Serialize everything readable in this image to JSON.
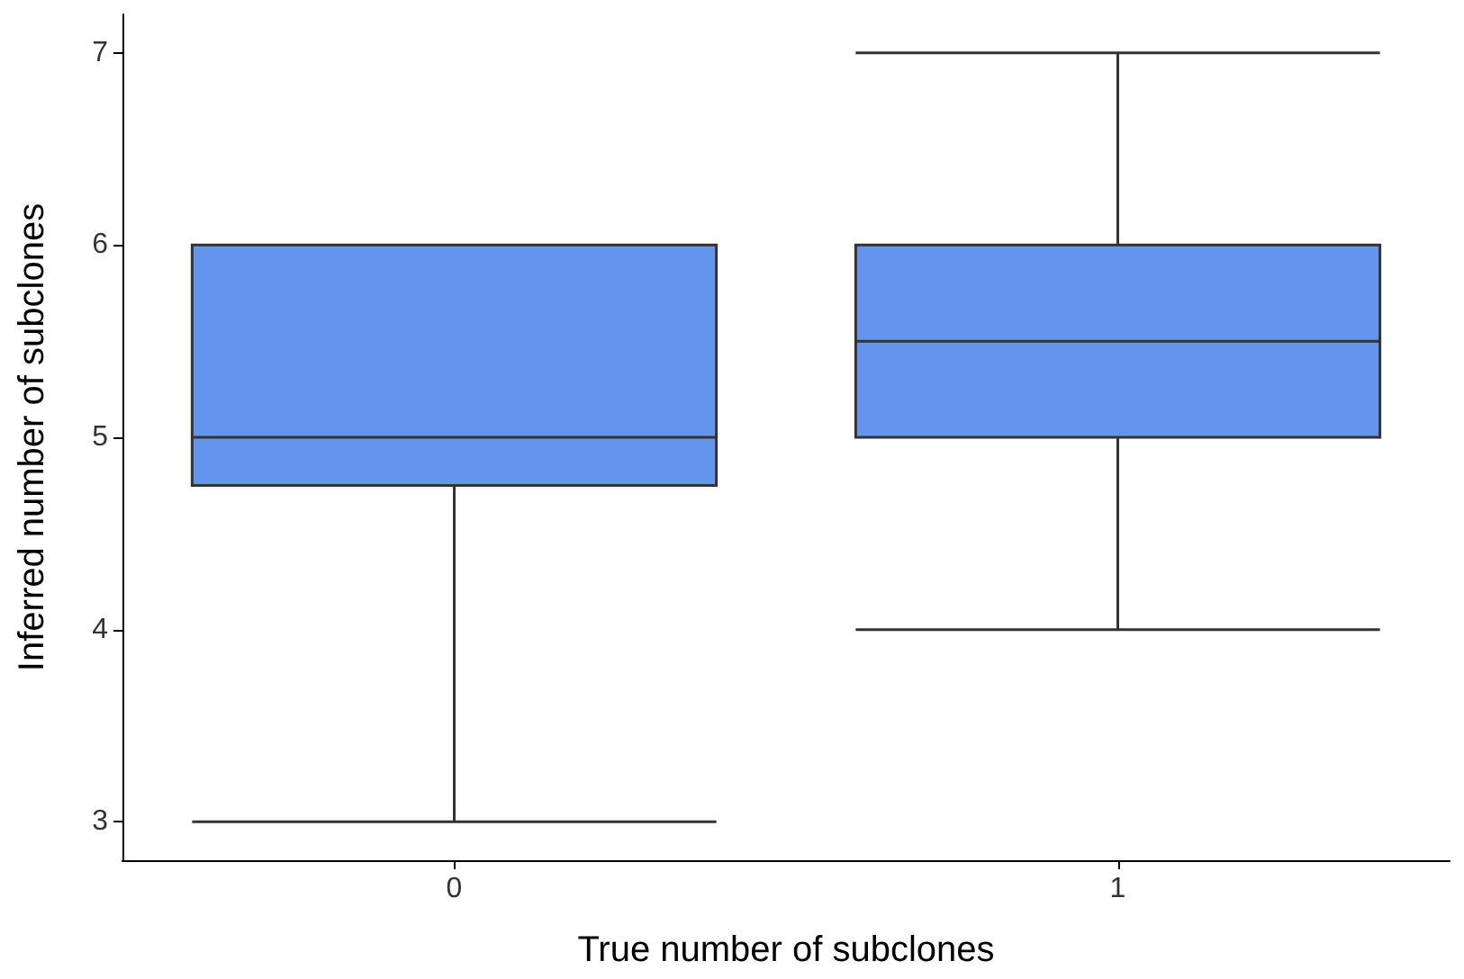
{
  "chart_data": {
    "type": "box",
    "xlabel": "True number of subclones",
    "ylabel": "Inferred number of subclones",
    "categories": [
      "0",
      "1"
    ],
    "boxes": [
      {
        "low": 3,
        "q1": 4.75,
        "median": 5,
        "q3": 6,
        "high": 6
      },
      {
        "low": 4,
        "q1": 5,
        "median": 5.5,
        "q3": 6,
        "high": 7
      }
    ],
    "color": "#6495ed",
    "ylim": [
      2.8,
      7.2
    ],
    "yticks": [
      3,
      4,
      5,
      6,
      7
    ],
    "grid": false
  }
}
